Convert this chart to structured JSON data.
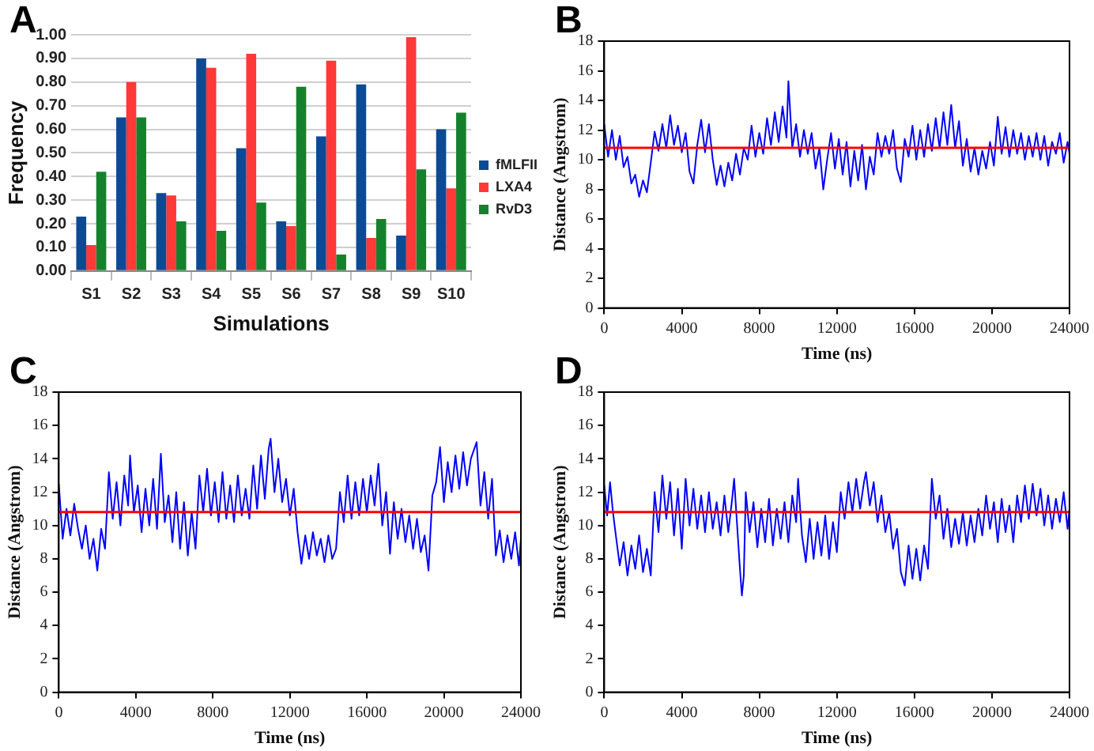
{
  "chart_data": [
    {
      "type": "bar",
      "annotations": [
        "A"
      ],
      "xlabel": "Simulations",
      "ylabel": "Frequency",
      "categories": [
        "S1",
        "S2",
        "S3",
        "S4",
        "S5",
        "S6",
        "S7",
        "S8",
        "S9",
        "S10"
      ],
      "series": [
        {
          "name": "fMLFII",
          "color": "#0d4a94",
          "values": [
            0.23,
            0.65,
            0.33,
            0.9,
            0.52,
            0.21,
            0.57,
            0.79,
            0.15,
            0.6
          ]
        },
        {
          "name": "LXA4",
          "color": "#ff3838",
          "values": [
            0.11,
            0.8,
            0.32,
            0.86,
            0.92,
            0.19,
            0.89,
            0.14,
            0.99,
            0.35
          ]
        },
        {
          "name": "RvD3",
          "color": "#16812c",
          "values": [
            0.42,
            0.65,
            0.21,
            0.17,
            0.29,
            0.78,
            0.07,
            0.22,
            0.43,
            0.67
          ]
        }
      ],
      "ylim": [
        0,
        1
      ],
      "yticks": [
        {
          "value": 0,
          "label": "0.00"
        },
        {
          "value": 0.1,
          "label": "0.10"
        },
        {
          "value": 0.2,
          "label": "0.20"
        },
        {
          "value": 0.3,
          "label": "0.30"
        },
        {
          "value": 0.4,
          "label": "0.40"
        },
        {
          "value": 0.5,
          "label": "0.50"
        },
        {
          "value": 0.6,
          "label": "0.60"
        },
        {
          "value": 0.7,
          "label": "0.70"
        },
        {
          "value": 0.8,
          "label": "0.80"
        },
        {
          "value": 0.9,
          "label": "0.90"
        },
        {
          "value": 1,
          "label": "1.00"
        }
      ],
      "grid": "y",
      "legend": "right"
    },
    {
      "type": "line",
      "annotations": [
        "B"
      ],
      "xlabel": "Time (ns)",
      "ylabel": "Distance (Angstrom)",
      "marker": "none",
      "line_style": "solid",
      "grid": false,
      "xlim": [
        0,
        24000
      ],
      "xticks": [
        0,
        4000,
        8000,
        12000,
        16000,
        20000,
        24000
      ],
      "ylim": [
        0,
        18
      ],
      "yticks": [
        0,
        2,
        4,
        6,
        8,
        10,
        12,
        14,
        16,
        18
      ],
      "ref_lines": [
        {
          "axis": "y",
          "value": 10.8,
          "label": null,
          "color": "#ff0000"
        }
      ],
      "series": [
        {
          "color": "#0000ff",
          "x": [
            0,
            200,
            400,
            600,
            800,
            1000,
            1200,
            1400,
            1600,
            1800,
            2000,
            2200,
            2400,
            2600,
            2800,
            3000,
            3200,
            3400,
            3600,
            3800,
            4000,
            4200,
            4400,
            4600,
            4800,
            5000,
            5200,
            5400,
            5600,
            5800,
            6000,
            6200,
            6400,
            6600,
            6800,
            7000,
            7200,
            7400,
            7600,
            7800,
            8000,
            8200,
            8400,
            8600,
            8800,
            9000,
            9200,
            9400,
            9500,
            9700,
            9900,
            10100,
            10300,
            10500,
            10700,
            10900,
            11100,
            11300,
            11500,
            11700,
            11900,
            12100,
            12300,
            12500,
            12700,
            12900,
            13100,
            13300,
            13500,
            13700,
            13900,
            14100,
            14300,
            14500,
            14700,
            14900,
            15100,
            15300,
            15500,
            15700,
            15900,
            16100,
            16300,
            16500,
            16700,
            16900,
            17100,
            17300,
            17500,
            17700,
            17900,
            18100,
            18300,
            18500,
            18700,
            18900,
            19100,
            19300,
            19500,
            19700,
            19900,
            20100,
            20300,
            20500,
            20700,
            20900,
            21100,
            21300,
            21500,
            21700,
            21900,
            22100,
            22300,
            22500,
            22700,
            22900,
            23100,
            23300,
            23500,
            23700,
            23900,
            24000
          ],
          "values": [
            12.4,
            10.2,
            12.0,
            10.0,
            11.6,
            9.5,
            10.2,
            8.4,
            9.0,
            7.5,
            8.6,
            7.8,
            9.8,
            11.9,
            10.6,
            12.4,
            10.8,
            13.0,
            11.0,
            12.3,
            10.5,
            11.8,
            9.2,
            8.4,
            11.0,
            12.7,
            10.5,
            12.4,
            10.0,
            8.3,
            9.6,
            8.2,
            9.8,
            8.6,
            10.4,
            9.0,
            10.8,
            10.0,
            12.3,
            10.2,
            11.8,
            10.4,
            12.8,
            11.0,
            13.2,
            11.2,
            13.6,
            11.5,
            15.3,
            10.8,
            12.4,
            10.2,
            12.0,
            10.4,
            11.8,
            9.4,
            10.8,
            8.0,
            10.0,
            11.8,
            9.4,
            11.4,
            9.0,
            11.2,
            8.2,
            10.6,
            8.6,
            11.0,
            8.0,
            10.2,
            9.0,
            11.8,
            10.2,
            11.6,
            10.4,
            12.0,
            9.4,
            8.5,
            11.4,
            10.2,
            12.3,
            10.0,
            12.0,
            10.2,
            12.4,
            10.6,
            12.8,
            10.8,
            13.2,
            11.0,
            13.7,
            10.8,
            12.6,
            9.6,
            11.4,
            9.2,
            10.8,
            9.0,
            10.6,
            9.4,
            11.2,
            9.6,
            12.9,
            10.4,
            12.2,
            10.2,
            12.0,
            10.4,
            11.8,
            10.0,
            11.6,
            10.2,
            11.8,
            10.0,
            11.6,
            9.6,
            11.2,
            10.4,
            11.8,
            9.8,
            11.2,
            10.4
          ]
        }
      ]
    },
    {
      "type": "line",
      "annotations": [
        "C"
      ],
      "xlabel": "Time (ns)",
      "ylabel": "Distance (Angstrom)",
      "marker": "none",
      "line_style": "solid",
      "grid": false,
      "xlim": [
        0,
        24000
      ],
      "xticks": [
        0,
        4000,
        8000,
        12000,
        16000,
        20000,
        24000
      ],
      "ylim": [
        0,
        18
      ],
      "yticks": [
        0,
        2,
        4,
        6,
        8,
        10,
        12,
        14,
        16,
        18
      ],
      "ref_lines": [
        {
          "axis": "y",
          "value": 10.8,
          "label": null,
          "color": "#ff0000"
        }
      ],
      "series": [
        {
          "color": "#0000ff",
          "x": [
            0,
            200,
            400,
            600,
            800,
            1000,
            1200,
            1400,
            1600,
            1800,
            2000,
            2200,
            2400,
            2600,
            2800,
            3000,
            3200,
            3400,
            3600,
            3700,
            3900,
            4100,
            4300,
            4500,
            4700,
            4900,
            5100,
            5300,
            5500,
            5700,
            5900,
            6100,
            6300,
            6500,
            6700,
            6900,
            7100,
            7300,
            7500,
            7700,
            7900,
            8100,
            8300,
            8500,
            8700,
            8900,
            9100,
            9300,
            9500,
            9700,
            9900,
            10100,
            10300,
            10500,
            10700,
            10900,
            11000,
            11200,
            11400,
            11600,
            11800,
            12000,
            12200,
            12400,
            12600,
            12800,
            13000,
            13200,
            13400,
            13600,
            13800,
            14000,
            14200,
            14400,
            14600,
            14800,
            15000,
            15200,
            15400,
            15600,
            15800,
            16000,
            16200,
            16400,
            16600,
            16800,
            17000,
            17200,
            17400,
            17600,
            17800,
            18000,
            18200,
            18400,
            18600,
            18800,
            19000,
            19200,
            19400,
            19600,
            19800,
            20000,
            20200,
            20400,
            20600,
            20800,
            21000,
            21200,
            21400,
            21700,
            21900,
            22100,
            22300,
            22500,
            22700,
            22900,
            23100,
            23300,
            23500,
            23700,
            23900,
            24000
          ],
          "values": [
            12.5,
            9.2,
            11.0,
            9.4,
            11.3,
            9.8,
            8.6,
            10.0,
            8.0,
            9.2,
            7.3,
            9.8,
            8.6,
            13.2,
            10.4,
            12.6,
            10.0,
            13.0,
            11.2,
            14.2,
            10.8,
            12.4,
            9.6,
            12.2,
            10.0,
            12.8,
            9.8,
            14.3,
            10.2,
            11.8,
            9.0,
            12.0,
            8.6,
            11.4,
            8.2,
            10.8,
            8.6,
            13.0,
            10.8,
            13.4,
            10.6,
            12.6,
            10.2,
            13.2,
            10.4,
            12.4,
            10.2,
            13.0,
            10.6,
            12.2,
            10.4,
            13.6,
            11.0,
            14.2,
            11.6,
            14.6,
            15.2,
            12.0,
            14.0,
            11.4,
            12.8,
            10.6,
            12.2,
            9.6,
            7.7,
            9.4,
            8.0,
            9.6,
            8.2,
            9.2,
            7.8,
            9.4,
            8.0,
            8.6,
            12.0,
            10.2,
            13.0,
            10.4,
            12.6,
            10.6,
            12.8,
            10.8,
            13.0,
            11.2,
            13.7,
            10.0,
            12.0,
            8.3,
            11.4,
            9.2,
            11.0,
            9.0,
            10.6,
            8.6,
            10.4,
            8.4,
            9.4,
            7.3,
            11.8,
            12.6,
            14.7,
            11.4,
            13.8,
            12.0,
            14.2,
            12.2,
            14.4,
            12.4,
            14.0,
            15.0,
            11.2,
            13.2,
            10.4,
            12.8,
            8.2,
            9.7,
            7.8,
            9.4,
            8.0,
            9.6,
            7.6,
            9.2
          ]
        }
      ]
    },
    {
      "type": "line",
      "annotations": [
        "D"
      ],
      "xlabel": "Time (ns)",
      "ylabel": "Distance (Angstrom)",
      "marker": "none",
      "line_style": "solid",
      "grid": false,
      "xlim": [
        0,
        24000
      ],
      "xticks": [
        0,
        4000,
        8000,
        12000,
        16000,
        20000,
        24000
      ],
      "ylim": [
        0,
        18
      ],
      "yticks": [
        0,
        2,
        4,
        6,
        8,
        10,
        12,
        14,
        16,
        18
      ],
      "ref_lines": [
        {
          "axis": "y",
          "value": 10.8,
          "label": null,
          "color": "#ff0000"
        }
      ],
      "series": [
        {
          "color": "#0000ff",
          "x": [
            0,
            150,
            300,
            450,
            600,
            800,
            1000,
            1200,
            1400,
            1600,
            1800,
            2000,
            2200,
            2400,
            2600,
            2800,
            3000,
            3200,
            3400,
            3600,
            3800,
            4000,
            4200,
            4400,
            4600,
            4800,
            5000,
            5200,
            5400,
            5600,
            5800,
            6000,
            6200,
            6400,
            6600,
            6700,
            6900,
            7000,
            7100,
            7200,
            7300,
            7500,
            7700,
            7900,
            8100,
            8300,
            8500,
            8700,
            8900,
            9100,
            9300,
            9500,
            9700,
            9900,
            10000,
            10200,
            10400,
            10600,
            10800,
            11000,
            11200,
            11400,
            11600,
            11800,
            12000,
            12200,
            12400,
            12600,
            12800,
            13000,
            13200,
            13400,
            13500,
            13700,
            13900,
            14100,
            14300,
            14500,
            14700,
            14900,
            15100,
            15300,
            15500,
            15700,
            15900,
            16100,
            16300,
            16500,
            16700,
            16900,
            17100,
            17300,
            17500,
            17700,
            17900,
            18100,
            18300,
            18500,
            18700,
            18900,
            19100,
            19300,
            19500,
            19700,
            19900,
            20100,
            20300,
            20500,
            20700,
            20900,
            21100,
            21300,
            21500,
            21700,
            21900,
            22100,
            22300,
            22500,
            22700,
            22900,
            23100,
            23300,
            23500,
            23700,
            23900,
            24000
          ],
          "values": [
            12.4,
            10.6,
            12.6,
            10.8,
            9.4,
            7.6,
            9.0,
            7.0,
            8.8,
            7.4,
            9.4,
            7.2,
            8.6,
            7.0,
            12.0,
            9.6,
            13.0,
            10.4,
            12.6,
            9.4,
            12.2,
            8.6,
            12.8,
            10.0,
            12.2,
            9.8,
            11.8,
            9.6,
            12.0,
            9.8,
            11.4,
            9.4,
            11.8,
            9.6,
            11.6,
            12.8,
            9.2,
            7.4,
            5.8,
            7.0,
            12.0,
            9.6,
            11.4,
            8.7,
            11.0,
            9.0,
            11.6,
            8.8,
            11.0,
            9.2,
            11.4,
            9.0,
            11.8,
            10.2,
            12.8,
            9.4,
            7.8,
            10.4,
            8.0,
            10.2,
            8.2,
            10.6,
            8.0,
            10.2,
            8.4,
            12.0,
            10.4,
            12.6,
            10.8,
            12.8,
            11.0,
            12.6,
            13.2,
            11.2,
            12.6,
            10.2,
            11.8,
            9.6,
            10.8,
            8.6,
            9.8,
            7.2,
            6.4,
            8.8,
            6.8,
            8.6,
            6.7,
            8.8,
            7.4,
            12.8,
            10.4,
            11.8,
            9.2,
            11.0,
            8.7,
            10.4,
            8.9,
            10.8,
            8.8,
            10.6,
            9.0,
            11.0,
            9.4,
            11.8,
            9.8,
            11.4,
            9.0,
            11.6,
            9.6,
            11.2,
            9.0,
            11.8,
            10.2,
            12.4,
            10.4,
            12.5,
            10.6,
            12.2,
            10.0,
            11.8,
            9.8,
            11.6,
            10.2,
            12.0,
            9.8,
            11.0
          ]
        }
      ]
    }
  ]
}
